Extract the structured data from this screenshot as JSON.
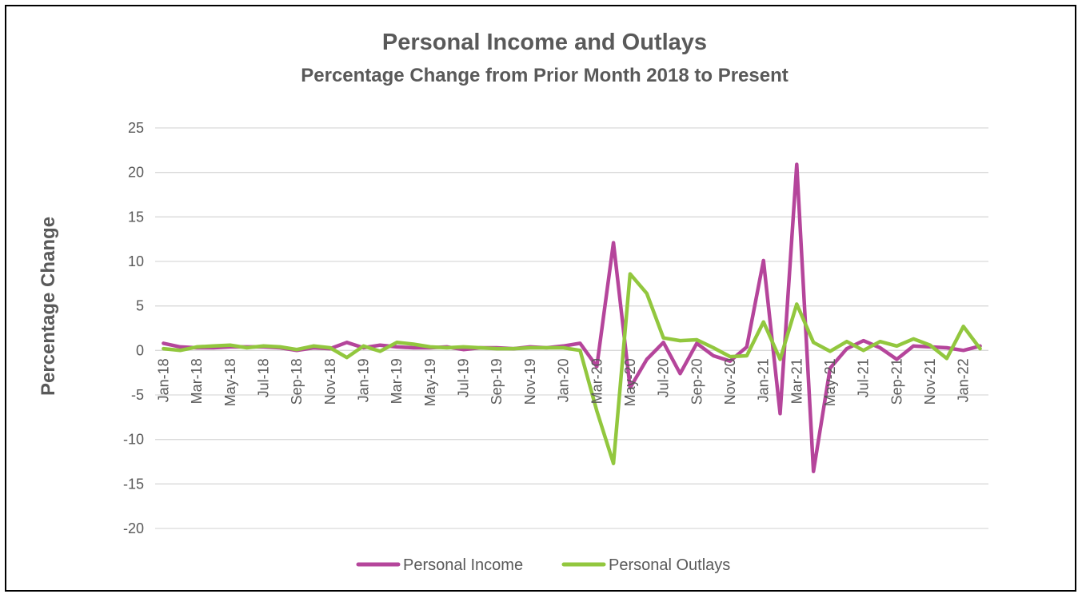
{
  "chart_data": {
    "type": "line",
    "title": "Personal Income and Outlays",
    "subtitle": "Percentage Change from Prior Month 2018 to Present",
    "xlabel": "",
    "ylabel": "Percentage Change",
    "ylim": [
      -20,
      25
    ],
    "yticks": [
      25,
      20,
      15,
      10,
      5,
      0,
      -5,
      -10,
      -15,
      -20
    ],
    "grid": true,
    "legend_position": "bottom",
    "categories": [
      "Jan-18",
      "Feb-18",
      "Mar-18",
      "Apr-18",
      "May-18",
      "Jun-18",
      "Jul-18",
      "Aug-18",
      "Sep-18",
      "Oct-18",
      "Nov-18",
      "Dec-18",
      "Jan-19",
      "Feb-19",
      "Mar-19",
      "Apr-19",
      "May-19",
      "Jun-19",
      "Jul-19",
      "Aug-19",
      "Sep-19",
      "Oct-19",
      "Nov-19",
      "Dec-19",
      "Jan-20",
      "Feb-20",
      "Mar-20",
      "Apr-20",
      "May-20",
      "Jun-20",
      "Jul-20",
      "Aug-20",
      "Sep-20",
      "Oct-20",
      "Nov-20",
      "Dec-20",
      "Jan-21",
      "Feb-21",
      "Mar-21",
      "Apr-21",
      "May-21",
      "Jun-21",
      "Jul-21",
      "Aug-21",
      "Sep-21",
      "Oct-21",
      "Nov-21",
      "Dec-21",
      "Jan-22",
      "Feb-22"
    ],
    "tick_labels": [
      "Jan-18",
      "Mar-18",
      "May-18",
      "Jul-18",
      "Sep-18",
      "Nov-18",
      "Jan-19",
      "Mar-19",
      "May-19",
      "Jul-19",
      "Sep-19",
      "Nov-19",
      "Jan-20",
      "Mar-20",
      "May-20",
      "Jul-20",
      "Sep-20",
      "Nov-20",
      "Jan-21",
      "Mar-21",
      "May-21",
      "Jul-21",
      "Sep-21",
      "Nov-21",
      "Jan-22"
    ],
    "series": [
      {
        "name": "Personal Income",
        "color": "#B5459B",
        "values": [
          0.8,
          0.4,
          0.3,
          0.3,
          0.4,
          0.4,
          0.4,
          0.3,
          0.0,
          0.3,
          0.2,
          0.9,
          0.3,
          0.6,
          0.4,
          0.3,
          0.3,
          0.4,
          0.1,
          0.3,
          0.3,
          0.2,
          0.4,
          0.3,
          0.5,
          0.8,
          -1.8,
          12.1,
          -4.2,
          -1.0,
          0.9,
          -2.6,
          0.8,
          -0.6,
          -1.2,
          0.4,
          10.1,
          -7.1,
          20.9,
          -13.6,
          -2.0,
          0.2,
          1.1,
          0.3,
          -1.0,
          0.5,
          0.4,
          0.3,
          0.0,
          0.5
        ]
      },
      {
        "name": "Personal Outlays",
        "color": "#92C73E",
        "values": [
          0.2,
          0.0,
          0.4,
          0.5,
          0.6,
          0.3,
          0.5,
          0.4,
          0.1,
          0.5,
          0.3,
          -0.8,
          0.5,
          -0.1,
          0.9,
          0.7,
          0.4,
          0.3,
          0.4,
          0.3,
          0.2,
          0.2,
          0.3,
          0.3,
          0.3,
          0.0,
          -6.8,
          -12.7,
          8.6,
          6.4,
          1.4,
          1.1,
          1.2,
          0.3,
          -0.7,
          -0.6,
          3.2,
          -1.0,
          5.2,
          0.9,
          -0.1,
          1.0,
          0.0,
          1.0,
          0.5,
          1.3,
          0.6,
          -0.9,
          2.7,
          0.2
        ]
      }
    ]
  }
}
